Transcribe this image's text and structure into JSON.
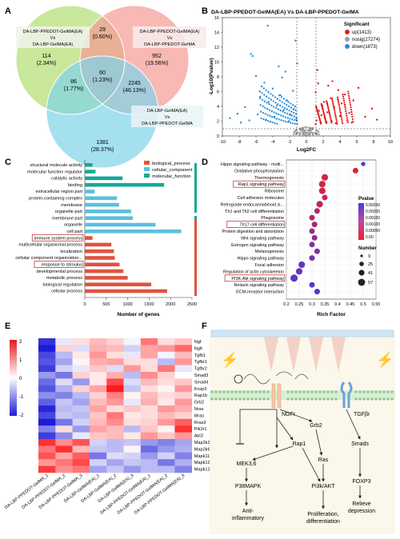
{
  "panels": {
    "A": {
      "letter": "A",
      "sets": [
        {
          "label_lines": [
            "DA-LBP-PPEDOT-GelMA(EA)",
            "Vs",
            "DA-LBP-GelMA(EA)"
          ],
          "color": "#8fd14f"
        },
        {
          "label_lines": [
            "DA-LBP-PPEDOT-GelMA(EA)",
            "Vs",
            "DA-LBP-PPEDOT-GelMA"
          ],
          "color": "#f36c6c"
        },
        {
          "label_lines": [
            "DA-LBP-GelMA(EA)",
            "Vs",
            "DA-LBP-PPEDOT-GelMA"
          ],
          "color": "#3bb8d8"
        }
      ],
      "regions": [
        {
          "n": "114",
          "pct": "(2.34%)"
        },
        {
          "n": "29",
          "pct": "(0.60%)"
        },
        {
          "n": "952",
          "pct": "(19.56%)"
        },
        {
          "n": "86",
          "pct": "(1.77%)"
        },
        {
          "n": "60",
          "pct": "(1.23%)"
        },
        {
          "n": "2245",
          "pct": "(46.13%)"
        },
        {
          "n": "1381",
          "pct": "(28.37%)"
        }
      ]
    },
    "B": {
      "letter": "B",
      "title": "DA-LBP-PPEDOT-GelMA(EA) Vs DA-LBP-PPEDOT-GelMA",
      "xlabel": "Log2FC",
      "ylabel": "-Log10(Pvalue)",
      "xticks": [
        "-10",
        "-8",
        "-6",
        "-4",
        "-2",
        "0",
        "2",
        "4",
        "6",
        "8",
        "10"
      ],
      "yticks": [
        "0",
        "2",
        "4",
        "6",
        "8",
        "10",
        "12",
        "14",
        "16"
      ],
      "legend_title": "Significant",
      "legend": [
        {
          "label": "up(1413)",
          "color": "#e31a1c"
        },
        {
          "label": "nosig(27274)",
          "color": "#9e9e9e"
        },
        {
          "label": "down(1873)",
          "color": "#2b8cd6"
        }
      ]
    },
    "C": {
      "letter": "C",
      "xlabel": "Number of genes",
      "xticks": [
        "0",
        "500",
        "1000",
        "1500",
        "2000",
        "2500"
      ],
      "legend": [
        {
          "label": "biological_process",
          "color": "#e0533f"
        },
        {
          "label": "cellular_component",
          "color": "#5bc0dc"
        },
        {
          "label": "molecular_function",
          "color": "#16a896"
        }
      ]
    },
    "D": {
      "letter": "D",
      "xlabel": "Rich Factor",
      "xticks": [
        "0.2",
        "0.25",
        "0.3",
        "0.35",
        "0.4",
        "0.45",
        "0.5",
        "0.55"
      ],
      "pvalue_title": "Pvalue",
      "pvalue_ticks": [
        "0.00250",
        "0.00200",
        "0.00150",
        "0.00100",
        "0.00050",
        "0.00"
      ],
      "number_title": "Number",
      "number_ticks": [
        "9",
        "25",
        "41",
        "57"
      ]
    },
    "E": {
      "letter": "E",
      "scale_ticks": [
        "2",
        "1",
        "0",
        "-1",
        "-2"
      ]
    },
    "F": {
      "letter": "F",
      "receptor1": "NGFr",
      "receptor2": "TGFβr",
      "nodes": {
        "rap1": "Rap1",
        "grb2": "Grb2",
        "ras": "Ras",
        "mek": "MEK3,6",
        "p38": "P38MAPK",
        "pi3k": "Pi3k/AKT",
        "smads": "Smads",
        "foxp3": "FOXP3"
      },
      "outcomes": {
        "anti": [
          "Anti-",
          "inflammatory"
        ],
        "prolif": [
          "Proliferation,",
          "differentiation"
        ],
        "relieve": [
          "Relieve",
          "depression"
        ]
      }
    }
  },
  "chart_data": [
    {
      "type": "scatter",
      "title": "DA-LBP-PPEDOT-GelMA(EA) Vs DA-LBP-PPEDOT-GelMA",
      "xlabel": "Log2FC",
      "ylabel": "-Log10(Pvalue)",
      "xlim": [
        -10,
        10
      ],
      "ylim": [
        0,
        16
      ],
      "series": [
        {
          "name": "up(1413)",
          "points": [
            [
              1.2,
              2.1
            ],
            [
              1.5,
              3.4
            ],
            [
              1.8,
              2.8
            ],
            [
              2.1,
              4.6
            ],
            [
              2.5,
              3.2
            ],
            [
              2.9,
              5.1
            ],
            [
              3.3,
              3.9
            ],
            [
              3.8,
              6.2
            ],
            [
              4.2,
              4.4
            ],
            [
              4.6,
              5.6
            ],
            [
              5.1,
              3.1
            ],
            [
              5.6,
              4.8
            ],
            [
              6.2,
              6.5
            ],
            [
              7.0,
              2.6
            ],
            [
              7.8,
              3.7
            ],
            [
              8.4,
              2.2
            ],
            [
              1.1,
              5.9
            ],
            [
              1.4,
              7.1
            ],
            [
              1.7,
              1.8
            ],
            [
              2.2,
              2.4
            ],
            [
              2.6,
              6.8
            ],
            [
              3.0,
              2.0
            ],
            [
              3.5,
              1.7
            ],
            [
              1.3,
              8.9
            ],
            [
              1.9,
              4.1
            ],
            [
              2.4,
              1.9
            ],
            [
              3.1,
              7.4
            ],
            [
              4.0,
              2.7
            ],
            [
              4.9,
              2.1
            ],
            [
              5.4,
              1.8
            ]
          ]
        },
        {
          "name": "nosig(27274)",
          "points": [
            [
              -1.5,
              0.2
            ],
            [
              -1.0,
              0.5
            ],
            [
              -0.5,
              0.8
            ],
            [
              0,
              1.2
            ],
            [
              0.5,
              0.7
            ],
            [
              1.0,
              0.4
            ],
            [
              1.5,
              0.2
            ],
            [
              -0.8,
              1.0
            ],
            [
              0.3,
              0.3
            ],
            [
              -0.2,
              0.6
            ],
            [
              0.8,
              1.1
            ],
            [
              -1.2,
              0.9
            ]
          ]
        },
        {
          "name": "down(1873)",
          "points": [
            [
              -1.2,
              2.3
            ],
            [
              -1.5,
              3.6
            ],
            [
              -1.9,
              2.9
            ],
            [
              -2.3,
              4.8
            ],
            [
              -2.7,
              3.5
            ],
            [
              -3.1,
              5.5
            ],
            [
              -3.5,
              4.1
            ],
            [
              -4.0,
              6.4
            ],
            [
              -4.5,
              4.6
            ],
            [
              -5.0,
              7.2
            ],
            [
              -5.5,
              5.3
            ],
            [
              -6.0,
              8.1
            ],
            [
              -6.4,
              10.8
            ],
            [
              -6.6,
              11.1
            ],
            [
              -1.1,
              9.8
            ],
            [
              -1.3,
              12.9
            ],
            [
              -4.6,
              14.9
            ],
            [
              -2.9,
              7.9
            ],
            [
              -7.3,
              3.9
            ],
            [
              -8.2,
              3.0
            ],
            [
              -9.1,
              2.4
            ],
            [
              -1.6,
              6.1
            ],
            [
              -2.1,
              2.0
            ],
            [
              -3.8,
              2.6
            ],
            [
              -4.8,
              2.2
            ],
            [
              -5.8,
              2.9
            ],
            [
              -6.8,
              2.1
            ],
            [
              -7.8,
              1.8
            ],
            [
              -2.5,
              8.7
            ],
            [
              -3.3,
              9.4
            ]
          ]
        }
      ]
    },
    {
      "type": "bar",
      "xlabel": "Number of genes",
      "xlim": [
        0,
        2500
      ],
      "categories": [
        "structural molecule activity",
        "molecular function regulator",
        "catalytic activity",
        "binding",
        "extracellular region part",
        "protein-containing complex",
        "membrane",
        "organelle part",
        "membrane part",
        "organelle",
        "cell part",
        "immune system process",
        "multicellular organismal process",
        "localization",
        "cellular component organization...",
        "response to stimulus",
        "developmental process",
        "metabolic process",
        "biological regulation",
        "cellular process"
      ],
      "values": [
        180,
        250,
        880,
        1850,
        230,
        750,
        800,
        1080,
        1120,
        1650,
        2250,
        180,
        620,
        680,
        700,
        810,
        900,
        1000,
        1550,
        1920
      ],
      "groups": [
        "molecular_function",
        "molecular_function",
        "molecular_function",
        "molecular_function",
        "cellular_component",
        "cellular_component",
        "cellular_component",
        "cellular_component",
        "cellular_component",
        "cellular_component",
        "cellular_component",
        "biological_process",
        "biological_process",
        "biological_process",
        "biological_process",
        "biological_process",
        "biological_process",
        "biological_process",
        "biological_process",
        "biological_process"
      ],
      "highlighted": [
        "immune system process",
        "response to stimulus"
      ]
    },
    {
      "type": "scatter",
      "xlabel": "Rich Factor",
      "xlim": [
        0.2,
        0.55
      ],
      "categories": [
        "Hippo signaling pathway - multi...",
        "Oxidative phosphorylation",
        "Thermogenesis",
        "Rap1 signaling pathway",
        "Ribosome",
        "Cell adhesion molecules",
        "Retrograde endocannabinoid si...",
        "Th1 and Th2 cell differentiation",
        "Phagosome",
        "Th17 cell differentiation",
        "Protein digestion and absorption",
        "Wnt signaling pathway",
        "Estrogen signaling pathway",
        "Melanogenesis",
        "Hippo signaling pathway",
        "Focal adhesion",
        "Regulation of actin cytoskeleton",
        "PI3K-Akt signaling pathway",
        "Relaxin signaling pathway",
        "ECM-receptor interaction"
      ],
      "rich_factor": [
        0.5,
        0.47,
        0.35,
        0.34,
        0.34,
        0.35,
        0.33,
        0.32,
        0.3,
        0.31,
        0.3,
        0.31,
        0.3,
        0.32,
        0.3,
        0.26,
        0.25,
        0.23,
        0.3,
        0.32
      ],
      "number": [
        9,
        25,
        41,
        41,
        41,
        25,
        41,
        25,
        25,
        25,
        25,
        25,
        25,
        25,
        25,
        41,
        41,
        57,
        25,
        25
      ],
      "pvalue": [
        0.0025,
        0.0002,
        0.0003,
        0.0004,
        0.0005,
        0.0006,
        0.0007,
        0.0008,
        0.0009,
        0.001,
        0.0012,
        0.0014,
        0.0016,
        0.0018,
        0.0019,
        0.002,
        0.0021,
        0.0022,
        0.0023,
        0.0024
      ],
      "highlighted": [
        "Rap1 signaling pathway",
        "Th17 cell differentiation",
        "PI3K-Akt signaling pathway"
      ]
    },
    {
      "type": "heatmap",
      "scale": [
        -2,
        2
      ],
      "rows": [
        "Ngf",
        "Ngfr",
        "Tgfb1",
        "Tgfbr1",
        "Tgfbr2",
        "Smad3",
        "Smad4",
        "Foxp3",
        "Rap1b",
        "Grb2",
        "Nras",
        "Mras",
        "Rras2",
        "Pik3r1",
        "Akt3",
        "Map2k3",
        "Map2k6",
        "Mapk11",
        "Mapk12",
        "Mapk13"
      ],
      "columns": [
        "DA-LBP-PPEDOT-GelMA_1",
        "DA-LBP-PPEDOT-GelMA_2",
        "DA-LBP-PPEDOT-GelMA_3",
        "DA-LBP-GelMA(EA)_1",
        "DA-LBP-GelMA(EA)_2",
        "DA-LBP-GelMA(EA)_3",
        "DA-LBP-PPEDOT-GelMA(EA)_1",
        "DA-LBP-PPEDOT-GelMA(EA)_2",
        "DA-LBP-PPEDOT-GelMA(EA)_3"
      ],
      "values": [
        [
          -1.8,
          -0.2,
          0.3,
          0.6,
          0.4,
          -0.1,
          1.2,
          0.3,
          0.5
        ],
        [
          -2.0,
          0.4,
          -0.3,
          0.7,
          0.6,
          -0.4,
          0.8,
          0.9,
          1.3
        ],
        [
          -1.6,
          -0.6,
          0.2,
          0.9,
          0.3,
          -0.2,
          0.8,
          -0.1,
          0.6
        ],
        [
          -1.5,
          -0.8,
          0.1,
          0.7,
          0.8,
          0.3,
          0.3,
          -0.6,
          0.9
        ],
        [
          -1.7,
          -0.4,
          -0.2,
          0.5,
          -0.3,
          0.9,
          0.3,
          1.2,
          -0.2
        ],
        [
          -0.9,
          -1.2,
          0.4,
          0.2,
          0.7,
          -0.6,
          1.0,
          0.4,
          0.0
        ],
        [
          -1.3,
          -0.3,
          -0.9,
          0.2,
          1.6,
          -0.3,
          0.6,
          0.3,
          0.5
        ],
        [
          -1.5,
          -0.7,
          0.4,
          0.8,
          2.0,
          -0.5,
          0.3,
          0.1,
          0.9
        ],
        [
          -1.0,
          -1.1,
          -0.6,
          0.4,
          1.1,
          0.1,
          0.6,
          0.3,
          0.4
        ],
        [
          -1.4,
          -0.5,
          -0.8,
          0.6,
          0.9,
          -0.2,
          0.7,
          0.2,
          0.9
        ],
        [
          -1.9,
          -0.6,
          -0.5,
          0.8,
          0.3,
          0.5,
          0.3,
          0.9,
          0.7
        ],
        [
          -1.6,
          -0.5,
          -0.6,
          0.5,
          1.2,
          0.2,
          0.3,
          0.6,
          0.4
        ],
        [
          -2.0,
          -1.2,
          -0.4,
          0.6,
          1.0,
          0.3,
          0.4,
          0.9,
          1.4
        ],
        [
          -1.1,
          0.3,
          -0.9,
          0.8,
          0.6,
          -0.6,
          0.5,
          0.1,
          1.8
        ],
        [
          -1.7,
          -1.0,
          -0.2,
          0.5,
          0.6,
          0.2,
          0.9,
          0.5,
          0.9
        ],
        [
          1.8,
          1.0,
          1.5,
          -0.4,
          -0.6,
          -0.5,
          -0.9,
          -1.1,
          -0.8
        ],
        [
          1.2,
          1.8,
          0.6,
          -0.5,
          -0.6,
          0.1,
          -1.3,
          -0.9,
          -0.7
        ],
        [
          1.5,
          0.8,
          1.4,
          -1.2,
          -0.3,
          -0.4,
          -0.9,
          -0.4,
          -1.1
        ],
        [
          0.9,
          1.2,
          1.6,
          -0.4,
          -0.8,
          -0.5,
          -0.6,
          -1.2,
          -0.7
        ],
        [
          1.7,
          1.0,
          1.2,
          -0.8,
          -0.5,
          -0.9,
          -0.6,
          -0.6,
          -1.1
        ]
      ]
    }
  ]
}
